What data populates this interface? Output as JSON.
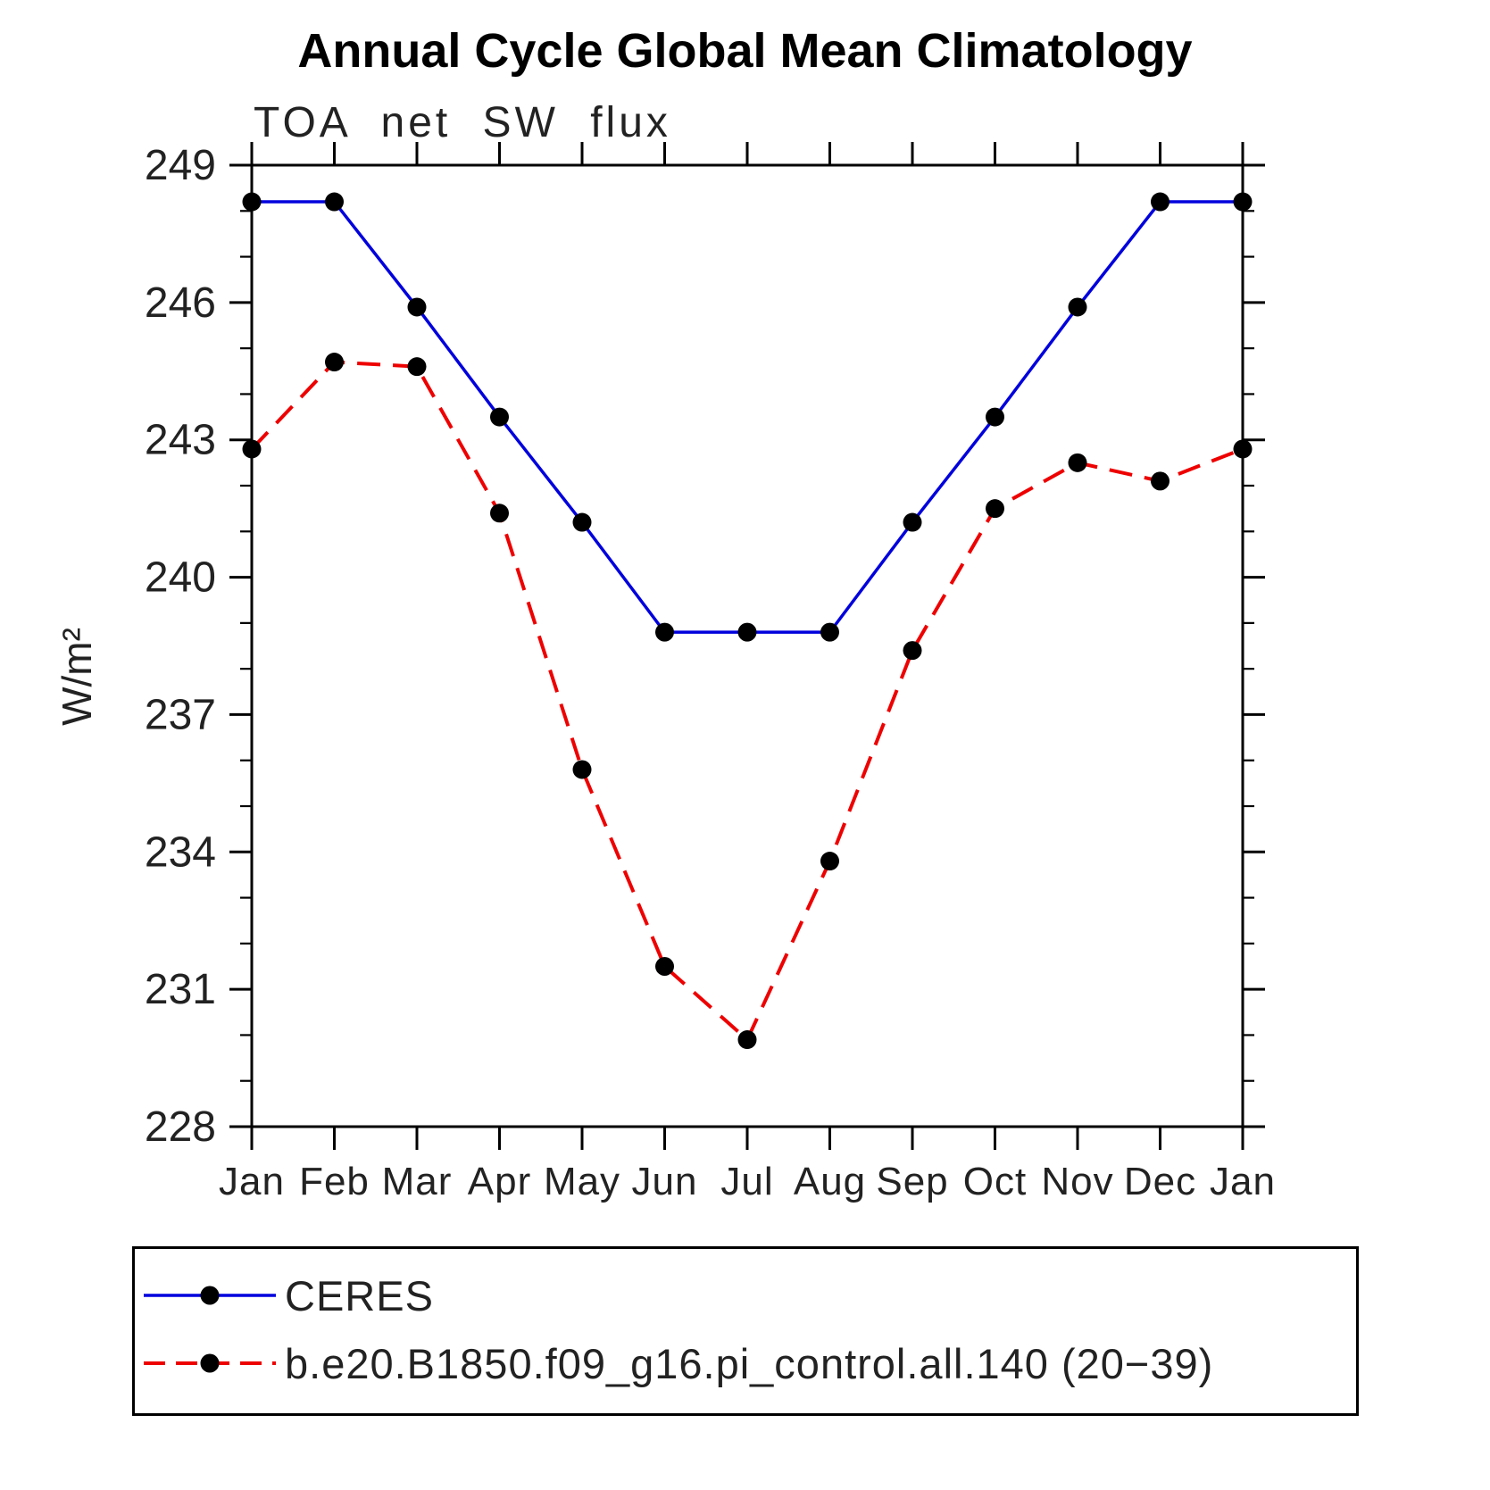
{
  "chart_data": {
    "type": "line",
    "title": "Annual Cycle Global Mean Climatology",
    "subtitle": "TOA net SW flux",
    "ylabel": "W/m²",
    "xlabel": "",
    "ylim": [
      228,
      249
    ],
    "yticks": [
      228,
      231,
      234,
      237,
      240,
      243,
      246,
      249
    ],
    "ytick_minor_step": 1,
    "grid": false,
    "legend_position": "bottom",
    "marker_color": "#000000",
    "categories": [
      "Jan",
      "Feb",
      "Mar",
      "Apr",
      "May",
      "Jun",
      "Jul",
      "Aug",
      "Sep",
      "Oct",
      "Nov",
      "Dec",
      "Jan"
    ],
    "series": [
      {
        "name": "CERES",
        "color": "#0000dd",
        "dashed": false,
        "values": [
          248.2,
          248.2,
          245.9,
          243.5,
          241.2,
          238.8,
          238.8,
          238.8,
          241.2,
          243.5,
          245.9,
          248.2,
          248.2
        ]
      },
      {
        "name": "b.e20.B1850.f09_g16.pi_control.all.140 (20−39)",
        "color": "#ee0000",
        "dashed": true,
        "values": [
          242.8,
          244.7,
          244.6,
          241.4,
          235.8,
          231.5,
          229.9,
          233.8,
          238.4,
          241.5,
          242.5,
          242.1,
          242.8
        ]
      }
    ]
  }
}
